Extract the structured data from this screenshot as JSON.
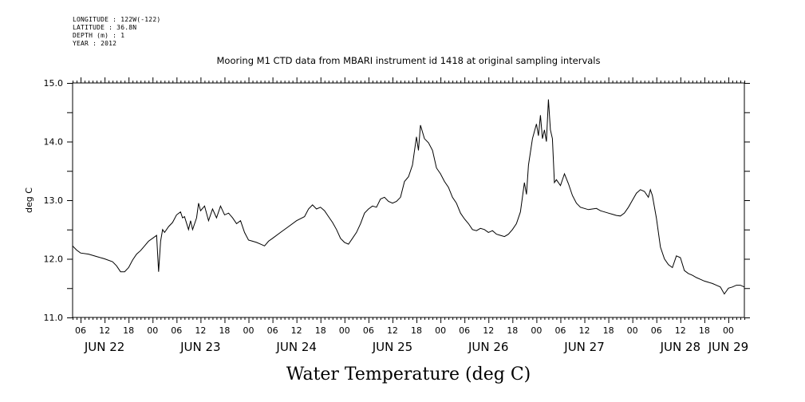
{
  "header": {
    "longitude": "LONGITUDE : 122W(-122)",
    "latitude": "LATITUDE : 36.8N",
    "depth": "DEPTH (m) : 1",
    "year": "YEAR : 2012"
  },
  "chart_data": {
    "type": "line",
    "title": "Mooring M1 CTD data from MBARI instrument id 1418 at original sampling intervals",
    "ylabel": "deg C",
    "footer_label": "Water Temperature (deg C)",
    "ylim": [
      11.0,
      15.0
    ],
    "yticks": [
      "11.0",
      "12.0",
      "13.0",
      "14.0",
      "15.0"
    ],
    "xlim_hours": [
      4,
      172
    ],
    "x_hour_ticks": [
      "06",
      "12",
      "18",
      "00",
      "06",
      "12",
      "18",
      "00",
      "06",
      "12",
      "18",
      "00",
      "06",
      "12",
      "18",
      "00",
      "06",
      "12",
      "18",
      "00",
      "06",
      "12",
      "18",
      "00",
      "06",
      "12",
      "18",
      "00"
    ],
    "x_day_labels": [
      "JUN 22",
      "JUN 23",
      "JUN 24",
      "JUN 25",
      "JUN 26",
      "JUN 27",
      "JUN 28",
      "JUN 29"
    ],
    "series": [
      {
        "values": [
          [
            4,
            12.22
          ],
          [
            5,
            12.15
          ],
          [
            6,
            12.1
          ],
          [
            8,
            12.08
          ],
          [
            10,
            12.04
          ],
          [
            12,
            12.0
          ],
          [
            14,
            11.95
          ],
          [
            15,
            11.88
          ],
          [
            16,
            11.78
          ],
          [
            17,
            11.78
          ],
          [
            18,
            11.85
          ],
          [
            19,
            11.98
          ],
          [
            20,
            12.08
          ],
          [
            21,
            12.14
          ],
          [
            22,
            12.22
          ],
          [
            23,
            12.3
          ],
          [
            24,
            12.35
          ],
          [
            25,
            12.4
          ],
          [
            25.5,
            11.78
          ],
          [
            26,
            12.3
          ],
          [
            26.5,
            12.5
          ],
          [
            27,
            12.45
          ],
          [
            28,
            12.55
          ],
          [
            29,
            12.62
          ],
          [
            30,
            12.75
          ],
          [
            31,
            12.8
          ],
          [
            31.5,
            12.7
          ],
          [
            32,
            12.72
          ],
          [
            33,
            12.5
          ],
          [
            33.5,
            12.65
          ],
          [
            34,
            12.5
          ],
          [
            35,
            12.7
          ],
          [
            35.5,
            12.95
          ],
          [
            36,
            12.82
          ],
          [
            37,
            12.9
          ],
          [
            38,
            12.65
          ],
          [
            39,
            12.85
          ],
          [
            40,
            12.7
          ],
          [
            41,
            12.9
          ],
          [
            42,
            12.75
          ],
          [
            43,
            12.78
          ],
          [
            44,
            12.7
          ],
          [
            45,
            12.6
          ],
          [
            46,
            12.65
          ],
          [
            47,
            12.45
          ],
          [
            48,
            12.32
          ],
          [
            49,
            12.3
          ],
          [
            50,
            12.28
          ],
          [
            51,
            12.25
          ],
          [
            52,
            12.22
          ],
          [
            53,
            12.3
          ],
          [
            54,
            12.35
          ],
          [
            56,
            12.45
          ],
          [
            58,
            12.55
          ],
          [
            60,
            12.65
          ],
          [
            62,
            12.72
          ],
          [
            63,
            12.85
          ],
          [
            64,
            12.92
          ],
          [
            65,
            12.85
          ],
          [
            66,
            12.88
          ],
          [
            67,
            12.82
          ],
          [
            68,
            12.72
          ],
          [
            69,
            12.62
          ],
          [
            70,
            12.5
          ],
          [
            71,
            12.35
          ],
          [
            72,
            12.28
          ],
          [
            73,
            12.25
          ],
          [
            74,
            12.35
          ],
          [
            75,
            12.45
          ],
          [
            76,
            12.6
          ],
          [
            77,
            12.78
          ],
          [
            78,
            12.85
          ],
          [
            79,
            12.9
          ],
          [
            80,
            12.88
          ],
          [
            81,
            13.02
          ],
          [
            82,
            13.05
          ],
          [
            83,
            12.98
          ],
          [
            84,
            12.95
          ],
          [
            85,
            12.98
          ],
          [
            86,
            13.05
          ],
          [
            87,
            13.32
          ],
          [
            88,
            13.4
          ],
          [
            89,
            13.6
          ],
          [
            90,
            14.08
          ],
          [
            90.5,
            13.85
          ],
          [
            91,
            14.28
          ],
          [
            92,
            14.05
          ],
          [
            93,
            13.98
          ],
          [
            94,
            13.85
          ],
          [
            95,
            13.55
          ],
          [
            96,
            13.45
          ],
          [
            97,
            13.32
          ],
          [
            98,
            13.22
          ],
          [
            99,
            13.05
          ],
          [
            100,
            12.95
          ],
          [
            101,
            12.78
          ],
          [
            102,
            12.68
          ],
          [
            103,
            12.6
          ],
          [
            104,
            12.5
          ],
          [
            105,
            12.48
          ],
          [
            106,
            12.52
          ],
          [
            107,
            12.5
          ],
          [
            108,
            12.45
          ],
          [
            109,
            12.48
          ],
          [
            110,
            12.42
          ],
          [
            111,
            12.4
          ],
          [
            112,
            12.38
          ],
          [
            113,
            12.42
          ],
          [
            114,
            12.5
          ],
          [
            115,
            12.6
          ],
          [
            116,
            12.8
          ],
          [
            117,
            13.3
          ],
          [
            117.5,
            13.1
          ],
          [
            118,
            13.6
          ],
          [
            119,
            14.05
          ],
          [
            120,
            14.3
          ],
          [
            120.5,
            14.1
          ],
          [
            121,
            14.45
          ],
          [
            121.5,
            14.05
          ],
          [
            122,
            14.2
          ],
          [
            122.5,
            14.0
          ],
          [
            123,
            14.72
          ],
          [
            123.5,
            14.2
          ],
          [
            124,
            14.05
          ],
          [
            124.5,
            13.3
          ],
          [
            125,
            13.35
          ],
          [
            126,
            13.25
          ],
          [
            127,
            13.45
          ],
          [
            128,
            13.28
          ],
          [
            129,
            13.08
          ],
          [
            130,
            12.95
          ],
          [
            131,
            12.88
          ],
          [
            132,
            12.86
          ],
          [
            133,
            12.84
          ],
          [
            134,
            12.85
          ],
          [
            135,
            12.86
          ],
          [
            136,
            12.82
          ],
          [
            137,
            12.8
          ],
          [
            138,
            12.78
          ],
          [
            139,
            12.76
          ],
          [
            140,
            12.74
          ],
          [
            141,
            12.73
          ],
          [
            142,
            12.78
          ],
          [
            143,
            12.88
          ],
          [
            144,
            13.0
          ],
          [
            145,
            13.12
          ],
          [
            146,
            13.18
          ],
          [
            147,
            13.15
          ],
          [
            148,
            13.05
          ],
          [
            148.5,
            13.18
          ],
          [
            149,
            13.08
          ],
          [
            150,
            12.7
          ],
          [
            151,
            12.2
          ],
          [
            152,
            12.0
          ],
          [
            153,
            11.9
          ],
          [
            154,
            11.85
          ],
          [
            155,
            12.05
          ],
          [
            156,
            12.02
          ],
          [
            157,
            11.8
          ],
          [
            158,
            11.75
          ],
          [
            159,
            11.72
          ],
          [
            160,
            11.68
          ],
          [
            161,
            11.65
          ],
          [
            162,
            11.62
          ],
          [
            163,
            11.6
          ],
          [
            164,
            11.58
          ],
          [
            165,
            11.55
          ],
          [
            166,
            11.52
          ],
          [
            167,
            11.4
          ],
          [
            168,
            11.5
          ],
          [
            169,
            11.52
          ],
          [
            170,
            11.55
          ],
          [
            171,
            11.55
          ],
          [
            172,
            11.52
          ]
        ]
      }
    ]
  }
}
